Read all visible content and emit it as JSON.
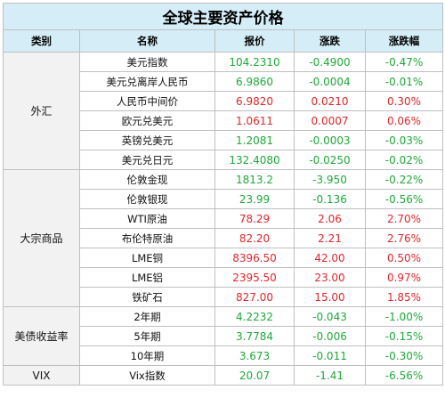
{
  "title": "全球主要资产价格",
  "headers": [
    "类别",
    "名称",
    "报价",
    "涨跌",
    "涨跌幅"
  ],
  "colors": {
    "up": "#e0262b",
    "down": "#1fa83a",
    "header_bg": "#d5edf7",
    "category_bg": "#f2f2f2"
  },
  "groups": [
    {
      "category": "外汇",
      "rows": [
        {
          "name": "美元指数",
          "price": "104.2310",
          "change": "-0.4900",
          "pct": "-0.47%",
          "dir": "down"
        },
        {
          "name": "美元兑离岸人民币",
          "price": "6.9860",
          "change": "-0.0004",
          "pct": "-0.01%",
          "dir": "down"
        },
        {
          "name": "人民币中间价",
          "price": "6.9820",
          "change": "0.0210",
          "pct": "0.30%",
          "dir": "up"
        },
        {
          "name": "欧元兑美元",
          "price": "1.0611",
          "change": "0.0007",
          "pct": "0.06%",
          "dir": "up"
        },
        {
          "name": "英镑兑美元",
          "price": "1.2081",
          "change": "-0.0003",
          "pct": "-0.03%",
          "dir": "down"
        },
        {
          "name": "美元兑日元",
          "price": "132.4080",
          "change": "-0.0250",
          "pct": "-0.02%",
          "dir": "down"
        }
      ]
    },
    {
      "category": "大宗商品",
      "rows": [
        {
          "name": "伦敦金现",
          "price": "1813.2",
          "change": "-3.950",
          "pct": "-0.22%",
          "dir": "down"
        },
        {
          "name": "伦敦银现",
          "price": "23.99",
          "change": "-0.136",
          "pct": "-0.56%",
          "dir": "down"
        },
        {
          "name": "WTI原油",
          "price": "78.29",
          "change": "2.06",
          "pct": "2.70%",
          "dir": "up"
        },
        {
          "name": "布伦特原油",
          "price": "82.20",
          "change": "2.21",
          "pct": "2.76%",
          "dir": "up"
        },
        {
          "name": "LME铜",
          "price": "8396.50",
          "change": "42.00",
          "pct": "0.50%",
          "dir": "up"
        },
        {
          "name": "LME铝",
          "price": "2395.50",
          "change": "23.00",
          "pct": "0.97%",
          "dir": "up"
        },
        {
          "name": "铁矿石",
          "price": "827.00",
          "change": "15.00",
          "pct": "1.85%",
          "dir": "up"
        }
      ]
    },
    {
      "category": "美债收益率",
      "rows": [
        {
          "name": "2年期",
          "price": "4.2232",
          "change": "-0.043",
          "pct": "-1.00%",
          "dir": "down"
        },
        {
          "name": "5年期",
          "price": "3.7784",
          "change": "-0.006",
          "pct": "-0.15%",
          "dir": "down"
        },
        {
          "name": "10年期",
          "price": "3.673",
          "change": "-0.011",
          "pct": "-0.30%",
          "dir": "down"
        }
      ]
    },
    {
      "category": "VIX",
      "rows": [
        {
          "name": "Vix指数",
          "price": "20.07",
          "change": "-1.41",
          "pct": "-6.56%",
          "dir": "down"
        }
      ]
    }
  ]
}
